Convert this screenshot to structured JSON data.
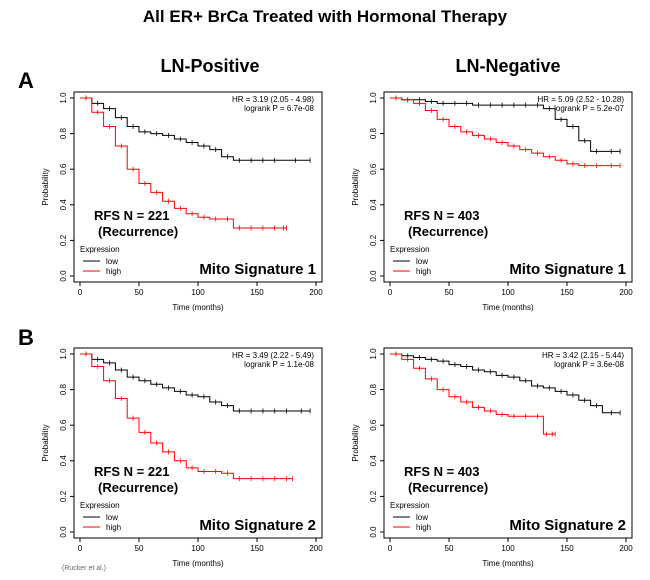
{
  "figure": {
    "title": "All ER+ BrCa Treated with Hormonal Therapy",
    "col_left": "LN-Positive",
    "col_right": "LN-Negative",
    "row_a": "A",
    "row_b": "B",
    "footer": "(Rucker et al.)"
  },
  "colors": {
    "low": "#000000",
    "high": "#ff0000"
  },
  "chart_data": [
    {
      "id": "A-pos",
      "type": "line",
      "title": "",
      "xlabel": "Time (months)",
      "ylabel": "Probability",
      "xlim": [
        0,
        200
      ],
      "ylim": [
        0,
        1.0
      ],
      "xticks": [
        "0",
        "50",
        "100",
        "150",
        "200"
      ],
      "yticks": [
        "0.0",
        "0.2",
        "0.4",
        "0.6",
        "0.8",
        "1.0"
      ],
      "hr_text": "HR = 3.19 (2.05 - 4.98)",
      "p_text": "logrank P = 6.7e-08",
      "rfs_text": "RFS   N = 221",
      "rec_text": "(Recurrence)",
      "signature": "Mito Signature 1",
      "legend_title": "Expression",
      "legend_low": "low",
      "legend_high": "high",
      "series": [
        {
          "name": "low",
          "x": [
            0,
            10,
            20,
            30,
            40,
            50,
            60,
            70,
            80,
            90,
            100,
            110,
            120,
            130,
            140,
            150,
            160,
            170,
            195
          ],
          "y": [
            1.0,
            0.97,
            0.94,
            0.89,
            0.84,
            0.81,
            0.8,
            0.79,
            0.77,
            0.75,
            0.73,
            0.71,
            0.67,
            0.65,
            0.65,
            0.65,
            0.65,
            0.65,
            0.65
          ]
        },
        {
          "name": "high",
          "x": [
            0,
            10,
            20,
            30,
            40,
            50,
            60,
            70,
            80,
            90,
            100,
            110,
            120,
            130,
            140,
            150,
            160,
            170,
            175
          ],
          "y": [
            1.0,
            0.92,
            0.84,
            0.73,
            0.6,
            0.52,
            0.47,
            0.42,
            0.38,
            0.35,
            0.33,
            0.32,
            0.32,
            0.27,
            0.27,
            0.27,
            0.27,
            0.27,
            0.27
          ]
        }
      ]
    },
    {
      "id": "A-neg",
      "type": "line",
      "title": "",
      "xlabel": "Time (months)",
      "ylabel": "Probability",
      "xlim": [
        0,
        200
      ],
      "ylim": [
        0,
        1.0
      ],
      "xticks": [
        "0",
        "50",
        "100",
        "150",
        "200"
      ],
      "yticks": [
        "0.0",
        "0.2",
        "0.4",
        "0.6",
        "0.8",
        "1.0"
      ],
      "hr_text": "HR = 5.09 (2.52 - 10.28)",
      "p_text": "logrank P = 5.2e-07",
      "rfs_text": "RFS   N = 403",
      "rec_text": "(Recurrence)",
      "signature": "Mito Signature 1",
      "legend_title": "Expression",
      "legend_low": "low",
      "legend_high": "high",
      "series": [
        {
          "name": "low",
          "x": [
            0,
            10,
            20,
            30,
            40,
            50,
            60,
            70,
            80,
            90,
            100,
            110,
            120,
            130,
            140,
            150,
            160,
            170,
            180,
            195
          ],
          "y": [
            1.0,
            0.99,
            0.99,
            0.98,
            0.97,
            0.97,
            0.97,
            0.96,
            0.96,
            0.96,
            0.96,
            0.96,
            0.96,
            0.94,
            0.88,
            0.84,
            0.76,
            0.7,
            0.7,
            0.7
          ]
        },
        {
          "name": "high",
          "x": [
            0,
            10,
            20,
            30,
            40,
            50,
            60,
            70,
            80,
            90,
            100,
            110,
            120,
            130,
            140,
            150,
            160,
            170,
            180,
            195
          ],
          "y": [
            1.0,
            0.99,
            0.97,
            0.93,
            0.88,
            0.84,
            0.81,
            0.79,
            0.77,
            0.75,
            0.73,
            0.71,
            0.69,
            0.67,
            0.65,
            0.63,
            0.62,
            0.62,
            0.62,
            0.62
          ]
        }
      ]
    },
    {
      "id": "B-pos",
      "type": "line",
      "title": "",
      "xlabel": "Time (months)",
      "ylabel": "Probability",
      "xlim": [
        0,
        200
      ],
      "ylim": [
        0,
        1.0
      ],
      "xticks": [
        "0",
        "50",
        "100",
        "150",
        "200"
      ],
      "yticks": [
        "0.0",
        "0.2",
        "0.4",
        "0.6",
        "0.8",
        "1.0"
      ],
      "hr_text": "HR = 3.49 (2.22 - 5.49)",
      "p_text": "logrank P = 1.1e-08",
      "rfs_text": "RFS   N = 221",
      "rec_text": "(Recurrence)",
      "signature": "Mito Signature 2",
      "legend_title": "Expression",
      "legend_low": "low",
      "legend_high": "high",
      "series": [
        {
          "name": "low",
          "x": [
            0,
            10,
            20,
            30,
            40,
            50,
            60,
            70,
            80,
            90,
            100,
            110,
            120,
            130,
            140,
            150,
            160,
            170,
            180,
            195
          ],
          "y": [
            1.0,
            0.97,
            0.95,
            0.91,
            0.87,
            0.85,
            0.83,
            0.81,
            0.79,
            0.77,
            0.76,
            0.73,
            0.71,
            0.68,
            0.68,
            0.68,
            0.68,
            0.68,
            0.68,
            0.68
          ]
        },
        {
          "name": "high",
          "x": [
            0,
            10,
            20,
            30,
            40,
            50,
            60,
            70,
            80,
            90,
            100,
            110,
            120,
            130,
            140,
            150,
            160,
            170,
            180
          ],
          "y": [
            1.0,
            0.93,
            0.85,
            0.75,
            0.64,
            0.56,
            0.5,
            0.45,
            0.4,
            0.36,
            0.34,
            0.34,
            0.33,
            0.3,
            0.3,
            0.3,
            0.3,
            0.3,
            0.3
          ]
        }
      ]
    },
    {
      "id": "B-neg",
      "type": "line",
      "title": "",
      "xlabel": "Time (months)",
      "ylabel": "Probability",
      "xlim": [
        0,
        200
      ],
      "ylim": [
        0,
        1.0
      ],
      "xticks": [
        "0",
        "50",
        "100",
        "150",
        "200"
      ],
      "yticks": [
        "0.0",
        "0.2",
        "0.4",
        "0.6",
        "0.8",
        "1.0"
      ],
      "hr_text": "HR = 3.42 (2.15 - 5.44)",
      "p_text": "logrank P = 3.6e-08",
      "rfs_text": "RFS   N = 403",
      "rec_text": "(Recurrence)",
      "signature": "Mito Signature 2",
      "legend_title": "Expression",
      "legend_low": "low",
      "legend_high": "high",
      "series": [
        {
          "name": "low",
          "x": [
            0,
            10,
            20,
            30,
            40,
            50,
            60,
            70,
            80,
            90,
            100,
            110,
            120,
            130,
            140,
            150,
            160,
            170,
            180,
            195
          ],
          "y": [
            1.0,
            0.99,
            0.98,
            0.97,
            0.96,
            0.94,
            0.93,
            0.91,
            0.9,
            0.88,
            0.87,
            0.85,
            0.82,
            0.81,
            0.79,
            0.77,
            0.74,
            0.71,
            0.67,
            0.67
          ]
        },
        {
          "name": "high",
          "x": [
            0,
            10,
            20,
            30,
            40,
            50,
            60,
            70,
            80,
            90,
            100,
            110,
            120,
            130,
            135,
            140
          ],
          "y": [
            1.0,
            0.97,
            0.92,
            0.86,
            0.8,
            0.76,
            0.73,
            0.7,
            0.68,
            0.66,
            0.65,
            0.65,
            0.65,
            0.55,
            0.55,
            0.55
          ]
        }
      ]
    }
  ]
}
